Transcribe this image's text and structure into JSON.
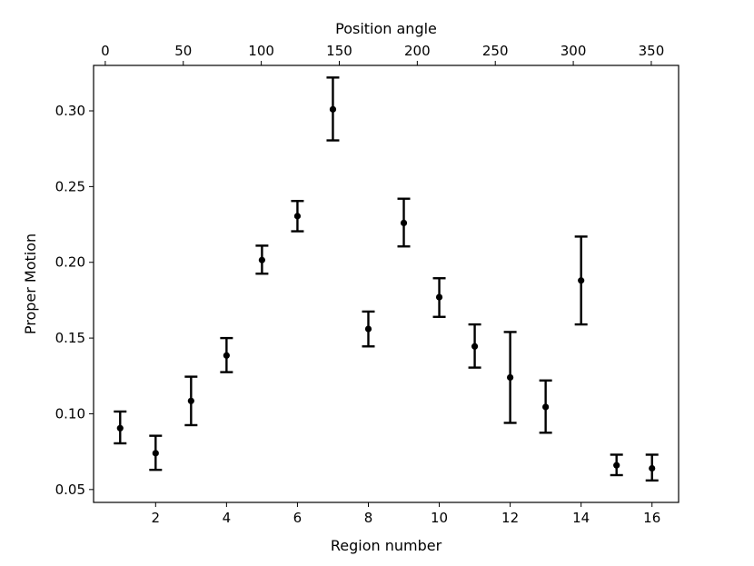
{
  "chart_data": {
    "type": "scatter",
    "xlabel": "Region number",
    "ylabel": "Proper Motion",
    "top_xlabel": "Position angle",
    "xlim": [
      0.25,
      16.75
    ],
    "ylim": [
      0.0415,
      0.33
    ],
    "top_xlim": [
      -7.5,
      367.5
    ],
    "x_ticks": [
      2,
      4,
      6,
      8,
      10,
      12,
      14,
      16
    ],
    "x_tick_labels": [
      "2",
      "4",
      "6",
      "8",
      "10",
      "12",
      "14",
      "16"
    ],
    "top_x_ticks": [
      0,
      50,
      100,
      150,
      200,
      250,
      300,
      350
    ],
    "top_x_tick_labels": [
      "0",
      "50",
      "100",
      "150",
      "200",
      "250",
      "300",
      "350"
    ],
    "y_ticks": [
      0.05,
      0.1,
      0.15,
      0.2,
      0.25,
      0.3
    ],
    "y_tick_labels": [
      "0.05",
      "0.10",
      "0.15",
      "0.20",
      "0.25",
      "0.30"
    ],
    "grid": false,
    "legend": false,
    "marker_color": "#000000",
    "series": [
      {
        "points": [
          {
            "x": 1,
            "y": 0.0905,
            "err_low": 0.0805,
            "err_high": 0.1015
          },
          {
            "x": 2,
            "y": 0.074,
            "err_low": 0.063,
            "err_high": 0.0855
          },
          {
            "x": 3,
            "y": 0.1085,
            "err_low": 0.0925,
            "err_high": 0.1245
          },
          {
            "x": 4,
            "y": 0.1385,
            "err_low": 0.1275,
            "err_high": 0.15
          },
          {
            "x": 5,
            "y": 0.2015,
            "err_low": 0.1925,
            "err_high": 0.211
          },
          {
            "x": 6,
            "y": 0.2305,
            "err_low": 0.2205,
            "err_high": 0.2405
          },
          {
            "x": 7,
            "y": 0.301,
            "err_low": 0.2805,
            "err_high": 0.322
          },
          {
            "x": 8,
            "y": 0.156,
            "err_low": 0.1445,
            "err_high": 0.1675
          },
          {
            "x": 9,
            "y": 0.226,
            "err_low": 0.2105,
            "err_high": 0.242
          },
          {
            "x": 10,
            "y": 0.177,
            "err_low": 0.164,
            "err_high": 0.1895
          },
          {
            "x": 11,
            "y": 0.1445,
            "err_low": 0.1305,
            "err_high": 0.159
          },
          {
            "x": 12,
            "y": 0.124,
            "err_low": 0.094,
            "err_high": 0.154
          },
          {
            "x": 13,
            "y": 0.1045,
            "err_low": 0.0875,
            "err_high": 0.122
          },
          {
            "x": 14,
            "y": 0.188,
            "err_low": 0.159,
            "err_high": 0.217
          },
          {
            "x": 15,
            "y": 0.066,
            "err_low": 0.0595,
            "err_high": 0.073
          },
          {
            "x": 16,
            "y": 0.064,
            "err_low": 0.056,
            "err_high": 0.073
          }
        ]
      }
    ]
  }
}
